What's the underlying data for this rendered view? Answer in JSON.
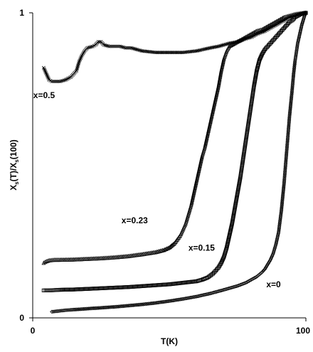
{
  "chart_data": {
    "type": "scatter",
    "title": "",
    "xlabel": "T(K)",
    "ylabel": "X_s(T)/X_s(100)",
    "ylabel_main": "X",
    "ylabel_sub1": "s",
    "ylabel_mid": "(T)/X",
    "ylabel_sub2": "s",
    "ylabel_tail": "(100)",
    "xlim": [
      0,
      100
    ],
    "ylim": [
      0,
      1
    ],
    "x_ticks": [
      "0",
      "100"
    ],
    "y_ticks": [
      "0",
      "1"
    ],
    "grid": false,
    "legend": "none",
    "series": [
      {
        "name": "x=0.5",
        "marker": "x",
        "points": [
          [
            4,
            0.82
          ],
          [
            5,
            0.8
          ],
          [
            6,
            0.78
          ],
          [
            7,
            0.775
          ],
          [
            8,
            0.775
          ],
          [
            10,
            0.775
          ],
          [
            12,
            0.78
          ],
          [
            14,
            0.79
          ],
          [
            16,
            0.81
          ],
          [
            17,
            0.84
          ],
          [
            18,
            0.86
          ],
          [
            19,
            0.875
          ],
          [
            20,
            0.885
          ],
          [
            22,
            0.89
          ],
          [
            23,
            0.895
          ],
          [
            24,
            0.905
          ],
          [
            25,
            0.905
          ],
          [
            26,
            0.895
          ],
          [
            28,
            0.89
          ],
          [
            30,
            0.89
          ],
          [
            32,
            0.89
          ],
          [
            34,
            0.885
          ],
          [
            36,
            0.885
          ],
          [
            40,
            0.875
          ],
          [
            45,
            0.87
          ],
          [
            50,
            0.87
          ],
          [
            55,
            0.87
          ],
          [
            60,
            0.875
          ],
          [
            65,
            0.885
          ],
          [
            68,
            0.89
          ],
          [
            72,
            0.9
          ],
          [
            75,
            0.905
          ],
          [
            78,
            0.915
          ],
          [
            80,
            0.92
          ],
          [
            82,
            0.93
          ],
          [
            85,
            0.94
          ],
          [
            88,
            0.955
          ],
          [
            90,
            0.965
          ],
          [
            92,
            0.975
          ],
          [
            94,
            0.985
          ],
          [
            96,
            0.99
          ],
          [
            98,
            0.995
          ],
          [
            100,
            1.0
          ]
        ]
      },
      {
        "name": "x=0.23",
        "marker": "triangle",
        "points": [
          [
            4,
            0.18
          ],
          [
            5,
            0.185
          ],
          [
            6,
            0.188
          ],
          [
            8,
            0.19
          ],
          [
            10,
            0.19
          ],
          [
            15,
            0.191
          ],
          [
            20,
            0.193
          ],
          [
            25,
            0.195
          ],
          [
            30,
            0.198
          ],
          [
            35,
            0.202
          ],
          [
            40,
            0.208
          ],
          [
            45,
            0.215
          ],
          [
            48,
            0.222
          ],
          [
            50,
            0.23
          ],
          [
            52,
            0.245
          ],
          [
            54,
            0.27
          ],
          [
            56,
            0.31
          ],
          [
            57,
            0.34
          ],
          [
            58,
            0.37
          ],
          [
            59,
            0.41
          ],
          [
            60,
            0.45
          ],
          [
            61,
            0.49
          ],
          [
            62,
            0.53
          ],
          [
            63,
            0.56
          ],
          [
            64,
            0.6
          ],
          [
            65,
            0.64
          ],
          [
            66,
            0.68
          ],
          [
            67,
            0.72
          ],
          [
            68,
            0.76
          ],
          [
            69,
            0.81
          ],
          [
            70,
            0.85
          ],
          [
            71,
            0.875
          ],
          [
            72,
            0.89
          ],
          [
            74,
            0.9
          ],
          [
            76,
            0.91
          ],
          [
            78,
            0.92
          ],
          [
            80,
            0.93
          ],
          [
            82,
            0.94
          ],
          [
            84,
            0.945
          ],
          [
            86,
            0.955
          ],
          [
            88,
            0.965
          ],
          [
            90,
            0.975
          ],
          [
            92,
            0.985
          ],
          [
            94,
            0.99
          ],
          [
            96,
            0.995
          ],
          [
            98,
            0.998
          ],
          [
            100,
            1.0
          ]
        ]
      },
      {
        "name": "x=0.15",
        "marker": "square",
        "points": [
          [
            4,
            0.09
          ],
          [
            5,
            0.09
          ],
          [
            6,
            0.09
          ],
          [
            8,
            0.091
          ],
          [
            10,
            0.092
          ],
          [
            15,
            0.093
          ],
          [
            20,
            0.095
          ],
          [
            25,
            0.097
          ],
          [
            30,
            0.099
          ],
          [
            35,
            0.101
          ],
          [
            40,
            0.104
          ],
          [
            45,
            0.107
          ],
          [
            50,
            0.11
          ],
          [
            55,
            0.115
          ],
          [
            60,
            0.12
          ],
          [
            62,
            0.125
          ],
          [
            64,
            0.132
          ],
          [
            66,
            0.145
          ],
          [
            68,
            0.165
          ],
          [
            69,
            0.18
          ],
          [
            70,
            0.2
          ],
          [
            71,
            0.23
          ],
          [
            72,
            0.27
          ],
          [
            73,
            0.31
          ],
          [
            74,
            0.36
          ],
          [
            75,
            0.41
          ],
          [
            76,
            0.46
          ],
          [
            77,
            0.52
          ],
          [
            78,
            0.58
          ],
          [
            79,
            0.64
          ],
          [
            80,
            0.7
          ],
          [
            81,
            0.76
          ],
          [
            82,
            0.81
          ],
          [
            83,
            0.845
          ],
          [
            84,
            0.865
          ],
          [
            85,
            0.88
          ],
          [
            86,
            0.89
          ],
          [
            87,
            0.9
          ],
          [
            88,
            0.91
          ],
          [
            89,
            0.92
          ],
          [
            90,
            0.93
          ],
          [
            91,
            0.94
          ],
          [
            92,
            0.95
          ],
          [
            93,
            0.96
          ],
          [
            94,
            0.97
          ],
          [
            95,
            0.975
          ],
          [
            96,
            0.985
          ],
          [
            97,
            0.99
          ],
          [
            98,
            0.995
          ],
          [
            99,
            0.998
          ],
          [
            100,
            1.0
          ]
        ]
      },
      {
        "name": "x=0",
        "marker": "diamond",
        "points": [
          [
            7,
            0.02
          ],
          [
            9,
            0.022
          ],
          [
            12,
            0.025
          ],
          [
            15,
            0.027
          ],
          [
            20,
            0.03
          ],
          [
            25,
            0.033
          ],
          [
            30,
            0.036
          ],
          [
            35,
            0.04
          ],
          [
            40,
            0.044
          ],
          [
            45,
            0.049
          ],
          [
            50,
            0.055
          ],
          [
            55,
            0.062
          ],
          [
            60,
            0.07
          ],
          [
            65,
            0.08
          ],
          [
            70,
            0.092
          ],
          [
            75,
            0.105
          ],
          [
            78,
            0.115
          ],
          [
            80,
            0.125
          ],
          [
            82,
            0.135
          ],
          [
            84,
            0.15
          ],
          [
            85,
            0.16
          ],
          [
            86,
            0.175
          ],
          [
            87,
            0.19
          ],
          [
            88,
            0.21
          ],
          [
            89,
            0.24
          ],
          [
            90,
            0.28
          ],
          [
            91,
            0.35
          ],
          [
            92,
            0.44
          ],
          [
            93,
            0.55
          ],
          [
            94,
            0.66
          ],
          [
            95,
            0.75
          ],
          [
            95.5,
            0.8
          ],
          [
            96,
            0.84
          ],
          [
            96.5,
            0.87
          ],
          [
            97,
            0.9
          ],
          [
            97.5,
            0.92
          ],
          [
            98,
            0.94
          ],
          [
            98.5,
            0.96
          ],
          [
            99,
            0.975
          ],
          [
            99.5,
            0.99
          ],
          [
            100,
            1.0
          ]
        ]
      }
    ],
    "annotations": [
      {
        "text": "x=0.5",
        "x": 0.2,
        "y": 0.72
      },
      {
        "text": "x=0.23",
        "x": 32.5,
        "y": 0.31
      },
      {
        "text": "x=0.15",
        "x": 57.0,
        "y": 0.22
      },
      {
        "text": "x=0",
        "x": 85.5,
        "y": 0.1
      }
    ]
  }
}
